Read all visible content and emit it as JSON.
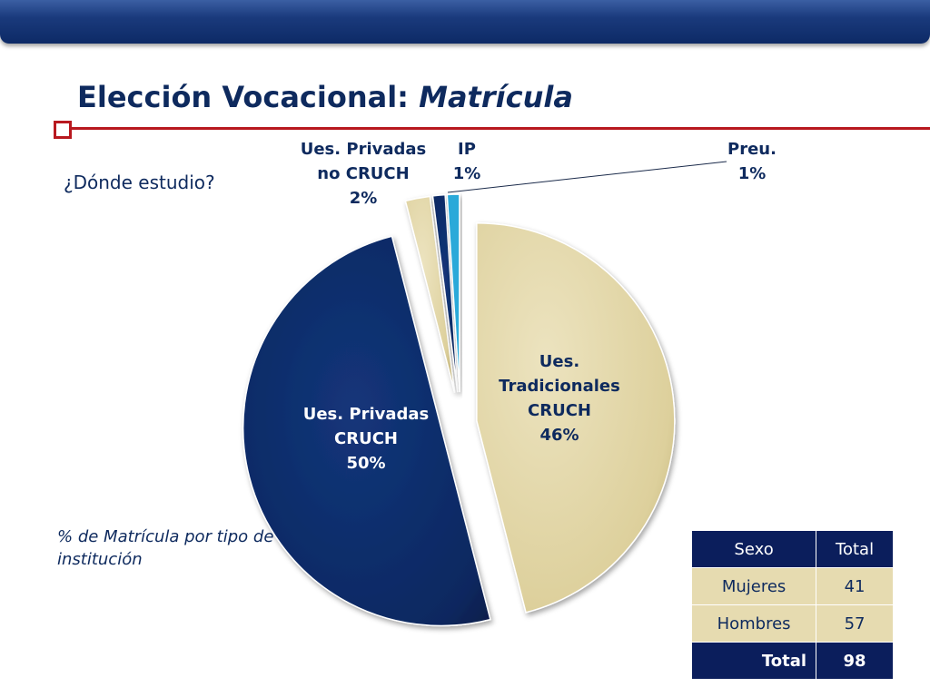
{
  "slide": {
    "title_main": "Elección Vocacional:",
    "title_italic": "Matrícula",
    "question": "¿Dónde estudio?",
    "caption": "% de Matrícula por tipo de institución"
  },
  "chart_data": {
    "type": "pie",
    "title": "",
    "slices": [
      {
        "label_lines": [
          "Ues.",
          "Tradicionales",
          "CRUCH",
          "46%"
        ],
        "value": 46,
        "color": "#e2d6a6"
      },
      {
        "label_lines": [
          "Ues. Privadas",
          "CRUCH",
          "50%"
        ],
        "value": 50,
        "color": "#0d2a66"
      },
      {
        "label_lines": [
          "Ues. Privadas",
          "no CRUCH",
          "2%"
        ],
        "value": 2,
        "color": "#e2d6a6"
      },
      {
        "label_lines": [
          "IP",
          "1%"
        ],
        "value": 1,
        "color": "#0d2a66"
      },
      {
        "label_lines": [
          "Preu.",
          "1%"
        ],
        "value": 1,
        "color": "#29a9d9"
      }
    ]
  },
  "table": {
    "headers": [
      "Sexo",
      "Total"
    ],
    "rows": [
      [
        "Mujeres",
        "41"
      ],
      [
        "Hombres",
        "57"
      ]
    ],
    "footer": [
      "Total",
      "98"
    ]
  }
}
